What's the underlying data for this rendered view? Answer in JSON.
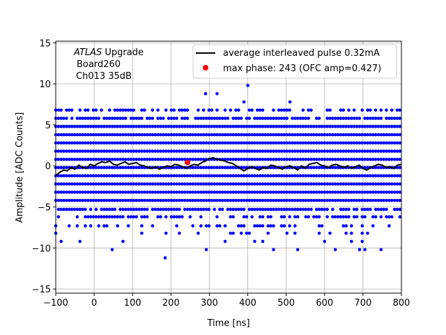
{
  "chart_data": {
    "type": "scatter",
    "xlabel": "Time [ns]",
    "ylabel": "Amplitude [ADC Counts]",
    "xlim": [
      -100,
      800
    ],
    "ylim": [
      -15.5,
      15.2
    ],
    "xticks": [
      -100,
      0,
      100,
      200,
      300,
      400,
      500,
      600,
      700,
      800
    ],
    "yticks": [
      -15,
      -10,
      -5,
      0,
      5,
      10,
      15
    ],
    "grid": true,
    "legend_placement": "top-right",
    "annotation": {
      "line1_italic": "ATLAS",
      "line1_rest": " Upgrade",
      "line2": "Board260",
      "line3": "Ch013 35dB"
    },
    "series": [
      {
        "name": "average interleaved pulse 0.32mA",
        "kind": "line",
        "color": "#000000",
        "x": [
          -100,
          -90,
          -80,
          -70,
          -60,
          -50,
          -40,
          -30,
          -20,
          -10,
          0,
          10,
          20,
          30,
          40,
          50,
          60,
          70,
          80,
          90,
          100,
          110,
          120,
          130,
          140,
          150,
          160,
          170,
          180,
          190,
          200,
          210,
          220,
          230,
          240,
          250,
          260,
          270,
          280,
          290,
          300,
          310,
          320,
          330,
          340,
          350,
          360,
          370,
          380,
          390,
          400,
          410,
          420,
          430,
          440,
          450,
          460,
          470,
          480,
          490,
          500,
          510,
          520,
          530,
          540,
          550,
          560,
          570,
          580,
          590,
          600,
          610,
          620,
          630,
          640,
          650,
          660,
          670,
          680,
          690,
          700,
          710,
          720,
          730,
          740,
          750,
          760,
          770,
          780,
          790,
          800
        ],
        "y": [
          -1.2,
          -0.8,
          -0.5,
          -0.6,
          -0.2,
          -0.4,
          0.1,
          -0.2,
          -0.3,
          0.2,
          0.0,
          0.3,
          0.5,
          0.4,
          0.6,
          0.2,
          0.1,
          0.3,
          0.5,
          0.2,
          0.3,
          0.4,
          0.1,
          0.0,
          -0.2,
          -0.3,
          -0.1,
          -0.4,
          -0.2,
          0.0,
          -0.1,
          0.2,
          0.1,
          -0.1,
          -0.3,
          0.0,
          0.2,
          0.1,
          0.4,
          0.6,
          0.9,
          1.0,
          0.8,
          0.7,
          0.6,
          0.4,
          0.3,
          0.0,
          -0.3,
          -0.6,
          -0.3,
          -0.1,
          -0.3,
          -0.5,
          -0.2,
          -0.3,
          0.1,
          0.0,
          -0.2,
          -0.4,
          -0.1,
          0.0,
          -0.2,
          -0.5,
          0.0,
          -0.3,
          0.2,
          0.3,
          0.4,
          0.1,
          0.0,
          -0.2,
          0.1,
          0.2,
          0.0,
          -0.2,
          0.0,
          -0.3,
          -0.1,
          0.1,
          -0.3,
          -0.5,
          -0.2,
          0.0,
          0.2,
          0.1,
          -0.2,
          -0.1,
          -0.3,
          0.1,
          0.2
        ]
      },
      {
        "name": "max phase: 243 (OFC amp=0.427)",
        "kind": "marker",
        "color": "#ff0000",
        "x": [
          243
        ],
        "y": [
          0.427
        ]
      },
      {
        "kind": "scatter",
        "color": "#0000ff",
        "levels": [
          -10.2,
          -9.2,
          -8.2,
          -7.3,
          -6.2,
          -5.3,
          -4.2,
          -3.2,
          -2.2,
          -1.2,
          -0.2,
          0.8,
          1.8,
          2.8,
          3.8,
          4.8,
          5.8,
          6.8
        ],
        "x_step": 7,
        "extra_points": [
          {
            "x": 290,
            "y": 8.8
          },
          {
            "x": 400,
            "y": 9.8
          },
          {
            "x": 320,
            "y": 8.8
          },
          {
            "x": 185,
            "y": -11.2
          },
          {
            "x": 510,
            "y": 7.8
          },
          {
            "x": 390,
            "y": 7.8
          }
        ]
      }
    ]
  }
}
